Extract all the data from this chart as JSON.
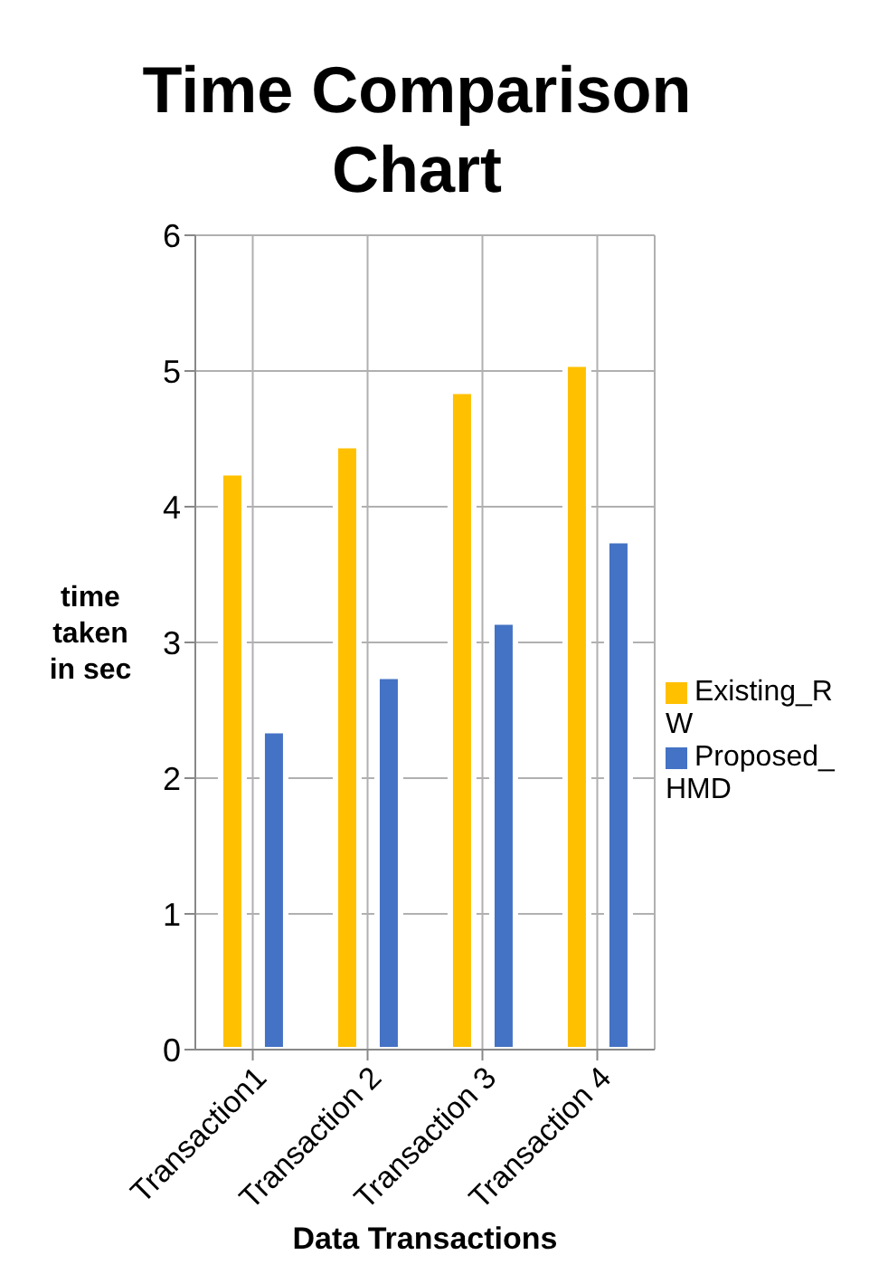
{
  "chart_data": {
    "type": "bar",
    "title": "Time Comparison Chart",
    "xlabel": "Data Transactions",
    "ylabel": "time taken in sec",
    "categories": [
      "Transaction1",
      "Transaction 2",
      "Transaction 3",
      "Transaction 4"
    ],
    "series": [
      {
        "name": "Existing_RW",
        "color": "#ffc000",
        "values": [
          4.25,
          4.45,
          4.85,
          5.05
        ]
      },
      {
        "name": "Proposed_HMD",
        "color": "#4472c4",
        "values": [
          2.35,
          2.75,
          3.15,
          3.75
        ]
      }
    ],
    "ylim": [
      0,
      6
    ],
    "yticks": [
      0,
      1,
      2,
      3,
      4,
      5,
      6
    ],
    "grid": true,
    "legend": "right"
  }
}
